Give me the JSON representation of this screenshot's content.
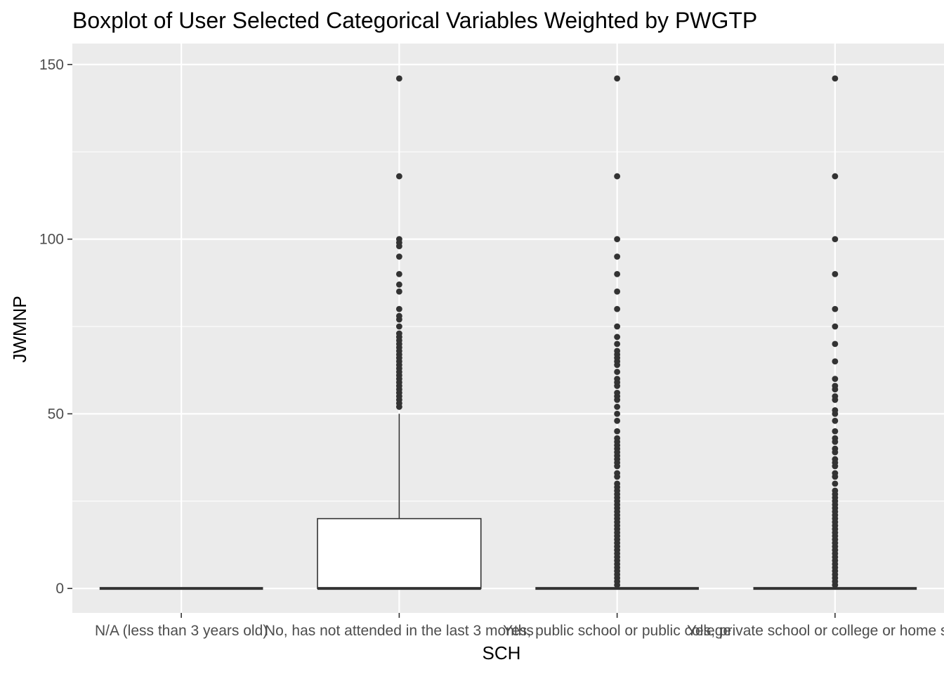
{
  "chart_data": {
    "type": "boxplot",
    "title": "Boxplot of User Selected Categorical Variables Weighted by PWGTP",
    "xlabel": "SCH",
    "ylabel": "JWMNP",
    "ylim": [
      -7,
      156
    ],
    "yticks": [
      0,
      50,
      100,
      150
    ],
    "grid": true,
    "categories": [
      "N/A (less than 3 years old)",
      "No, has not attended in the last 3 months",
      "Yes, public school or public college",
      "Yes, private school or college or home school"
    ],
    "boxes": [
      {
        "category": "N/A (less than 3 years old)",
        "min": 0,
        "q1": 0,
        "median": 0,
        "q3": 0,
        "max": 0,
        "outliers": []
      },
      {
        "category": "No, has not attended in the last 3 months",
        "min": 0,
        "q1": 0,
        "median": 0,
        "q3": 20,
        "max": 50,
        "outliers": [
          52,
          53,
          54,
          55,
          56,
          57,
          58,
          59,
          60,
          61,
          62,
          63,
          64,
          65,
          66,
          67,
          68,
          69,
          70,
          71,
          72,
          73,
          75,
          77,
          78,
          80,
          85,
          87,
          90,
          95,
          98,
          99,
          100,
          118,
          146
        ]
      },
      {
        "category": "Yes, public school or public college",
        "min": 0,
        "q1": 0,
        "median": 0,
        "q3": 0,
        "max": 0,
        "outliers": [
          1,
          2,
          3,
          4,
          5,
          6,
          7,
          8,
          9,
          10,
          11,
          12,
          13,
          14,
          15,
          16,
          17,
          18,
          19,
          20,
          21,
          22,
          23,
          24,
          25,
          26,
          27,
          28,
          29,
          30,
          32,
          33,
          35,
          36,
          37,
          38,
          39,
          40,
          41,
          42,
          43,
          45,
          48,
          50,
          52,
          54,
          55,
          56,
          58,
          59,
          60,
          62,
          64,
          65,
          66,
          67,
          68,
          70,
          72,
          75,
          80,
          85,
          90,
          95,
          100,
          118,
          146
        ]
      },
      {
        "category": "Yes, private school or college or home school",
        "min": 0,
        "q1": 0,
        "median": 0,
        "q3": 0,
        "max": 0,
        "outliers": [
          1,
          2,
          3,
          4,
          5,
          6,
          7,
          8,
          9,
          10,
          11,
          12,
          13,
          14,
          15,
          16,
          17,
          18,
          19,
          20,
          21,
          22,
          23,
          24,
          25,
          26,
          27,
          28,
          30,
          32,
          33,
          35,
          36,
          37,
          39,
          40,
          42,
          43,
          45,
          48,
          50,
          51,
          54,
          55,
          57,
          58,
          60,
          65,
          70,
          75,
          80,
          90,
          100,
          118,
          146
        ]
      }
    ]
  }
}
